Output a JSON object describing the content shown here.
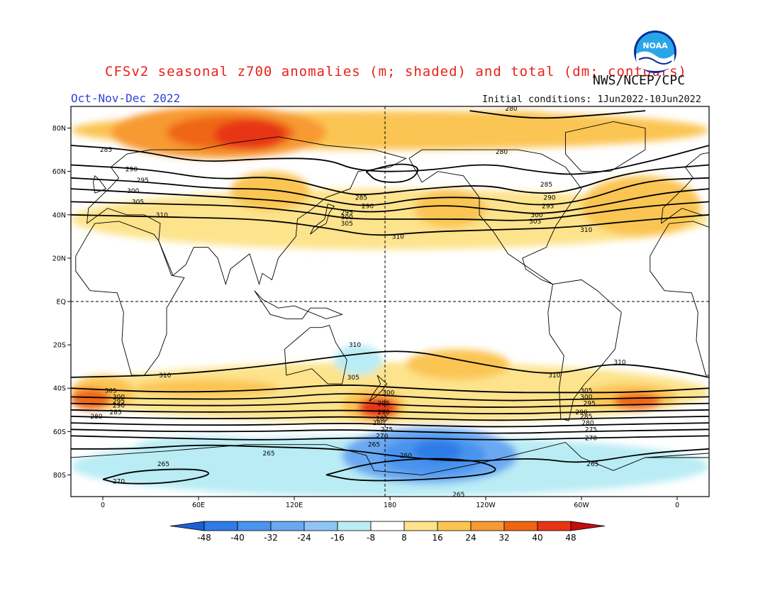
{
  "header": {
    "title": "CFSv2 seasonal z700 anomalies (m; shaded) and total (dm; contours)",
    "agency": "NWS/NCEP/CPC",
    "period": "Oct-Nov-Dec 2022",
    "initial_conditions": "Initial conditions: 1Jun2022-10Jun2022",
    "logo_text": "NOAA"
  },
  "colors": {
    "title": "#e8211b",
    "period": "#2d42d8",
    "land_outline": "#000000",
    "contour": "#000000"
  },
  "map": {
    "projection": "cylindrical equidistant, 20W-20E wraparound",
    "lat_labels": [
      "80N",
      "60N",
      "40N",
      "20N",
      "EQ",
      "20S",
      "40S",
      "60S",
      "80S"
    ],
    "lon_labels": [
      "0",
      "60E",
      "120E",
      "180",
      "120W",
      "60W",
      "0"
    ]
  },
  "colorbar": {
    "ticks": [
      "-48",
      "-40",
      "-32",
      "-24",
      "-16",
      "-8",
      "8",
      "16",
      "24",
      "32",
      "40",
      "48"
    ],
    "colors": [
      "#1c5fd4",
      "#2f7be8",
      "#4a93ee",
      "#6aa9f2",
      "#8ec4f6",
      "#b9ecf4",
      "#ffffff",
      "#fde38c",
      "#fbc553",
      "#f79a33",
      "#ef6612",
      "#e83513",
      "#c40d0d"
    ]
  },
  "contour_labels": [
    {
      "t": "285",
      "lon": 2,
      "lat": 70
    },
    {
      "t": "290",
      "lon": 18,
      "lat": 61
    },
    {
      "t": "295",
      "lon": 25,
      "lat": 56
    },
    {
      "t": "300",
      "lon": 19,
      "lat": 51
    },
    {
      "t": "305",
      "lon": 22,
      "lat": 46
    },
    {
      "t": "310",
      "lon": 37,
      "lat": 40
    },
    {
      "t": "285",
      "lon": 162,
      "lat": 48
    },
    {
      "t": "290",
      "lon": 166,
      "lat": 44
    },
    {
      "t": "295",
      "lon": 153,
      "lat": 41
    },
    {
      "t": "300",
      "lon": 153,
      "lat": 39
    },
    {
      "t": "305",
      "lon": 153,
      "lat": 36
    },
    {
      "t": "310",
      "lon": 185,
      "lat": 30
    },
    {
      "t": "280",
      "lon": 250,
      "lat": 69
    },
    {
      "t": "285",
      "lon": 278,
      "lat": 54
    },
    {
      "t": "290",
      "lon": 280,
      "lat": 48
    },
    {
      "t": "295",
      "lon": 279,
      "lat": 44
    },
    {
      "t": "300",
      "lon": 272,
      "lat": 40
    },
    {
      "t": "305",
      "lon": 271,
      "lat": 37
    },
    {
      "t": "310",
      "lon": 303,
      "lat": 33
    },
    {
      "t": "280",
      "lon": 256,
      "lat": 89
    },
    {
      "t": "310",
      "lon": 158,
      "lat": -20
    },
    {
      "t": "310",
      "lon": 39,
      "lat": -34
    },
    {
      "t": "305",
      "lon": 157,
      "lat": -35
    },
    {
      "t": "310",
      "lon": 283,
      "lat": -34
    },
    {
      "t": "310",
      "lon": 324,
      "lat": -28
    },
    {
      "t": "305",
      "lon": 5,
      "lat": -41
    },
    {
      "t": "300",
      "lon": 10,
      "lat": -44
    },
    {
      "t": "295",
      "lon": 10,
      "lat": -46
    },
    {
      "t": "290",
      "lon": 10,
      "lat": -48
    },
    {
      "t": "285",
      "lon": 8,
      "lat": -51
    },
    {
      "t": "280",
      "lon": -4,
      "lat": -53
    },
    {
      "t": "300",
      "lon": 179,
      "lat": -42
    },
    {
      "t": "295",
      "lon": 176,
      "lat": -47
    },
    {
      "t": "290",
      "lon": 176,
      "lat": -51
    },
    {
      "t": "285",
      "lon": 175,
      "lat": -54
    },
    {
      "t": "280",
      "lon": 173,
      "lat": -56
    },
    {
      "t": "275",
      "lon": 178,
      "lat": -59
    },
    {
      "t": "270",
      "lon": 175,
      "lat": -62
    },
    {
      "t": "265",
      "lon": 170,
      "lat": -66
    },
    {
      "t": "305",
      "lon": 303,
      "lat": -41
    },
    {
      "t": "300",
      "lon": 303,
      "lat": -44
    },
    {
      "t": "295",
      "lon": 305,
      "lat": -47
    },
    {
      "t": "290",
      "lon": 300,
      "lat": -51
    },
    {
      "t": "285",
      "lon": 303,
      "lat": -53
    },
    {
      "t": "280",
      "lon": 304,
      "lat": -56
    },
    {
      "t": "275",
      "lon": 306,
      "lat": -59
    },
    {
      "t": "270",
      "lon": 306,
      "lat": -63
    },
    {
      "t": "265",
      "lon": 307,
      "lat": -75
    },
    {
      "t": "265",
      "lon": 104,
      "lat": -70
    },
    {
      "t": "265",
      "lon": 38,
      "lat": -75
    },
    {
      "t": "260",
      "lon": 190,
      "lat": -71
    },
    {
      "t": "270",
      "lon": 10,
      "lat": -83
    },
    {
      "t": "265",
      "lon": 223,
      "lat": -89
    }
  ]
}
